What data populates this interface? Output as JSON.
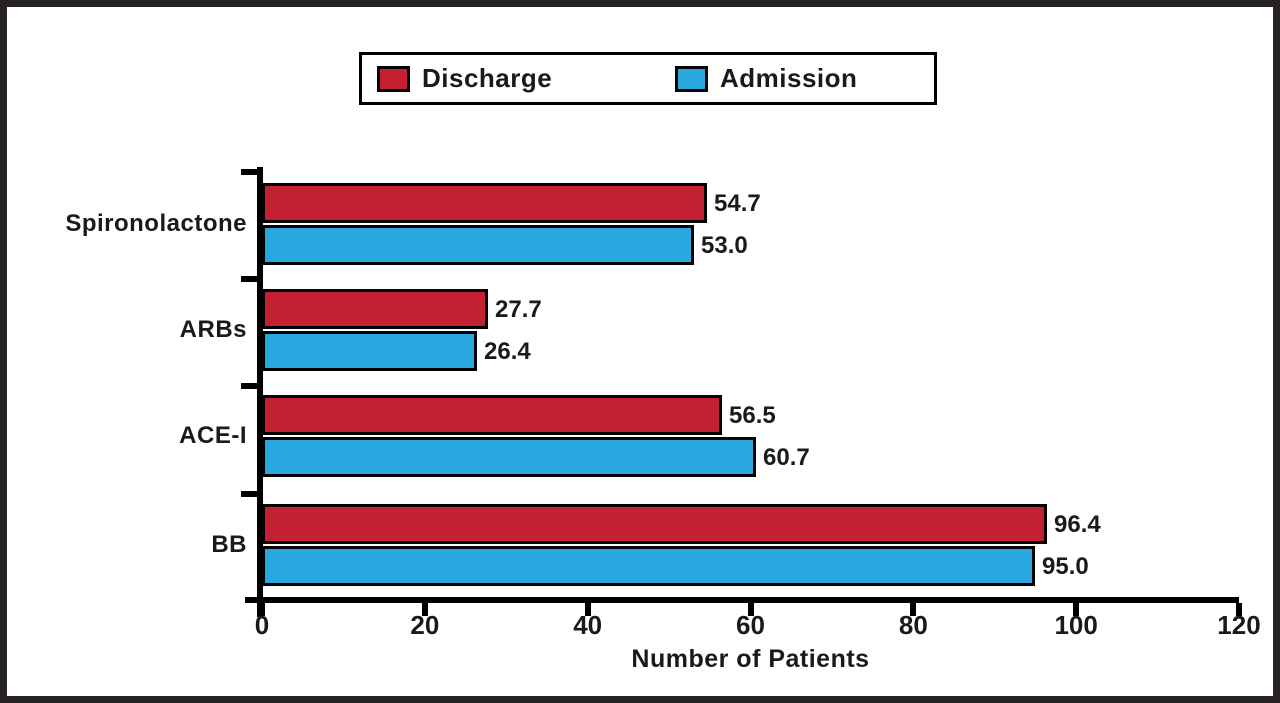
{
  "chart_data": {
    "type": "bar",
    "orientation": "horizontal",
    "title": "",
    "xlabel": "Number of Patients",
    "ylabel": "",
    "xlim": [
      0,
      120
    ],
    "x_ticks": [
      "0",
      "20",
      "40",
      "60",
      "80",
      "100",
      "120"
    ],
    "grid": false,
    "legend_position": "top-center",
    "categories": [
      "Spironolactone",
      "ARBs",
      "ACE-I",
      "BB"
    ],
    "series": [
      {
        "name": "Discharge",
        "color": "#c32132",
        "values": [
          54.7,
          27.7,
          56.5,
          96.4
        ]
      },
      {
        "name": "Admission",
        "color": "#29a8e0",
        "values": [
          53.0,
          26.4,
          60.7,
          95.0
        ]
      }
    ],
    "value_label_format": "one-decimal"
  },
  "colors": {
    "discharge": "#c32132",
    "admission": "#29a8e0",
    "axis": "#000000",
    "frame_border": "#262223",
    "background": "#ffffff"
  }
}
